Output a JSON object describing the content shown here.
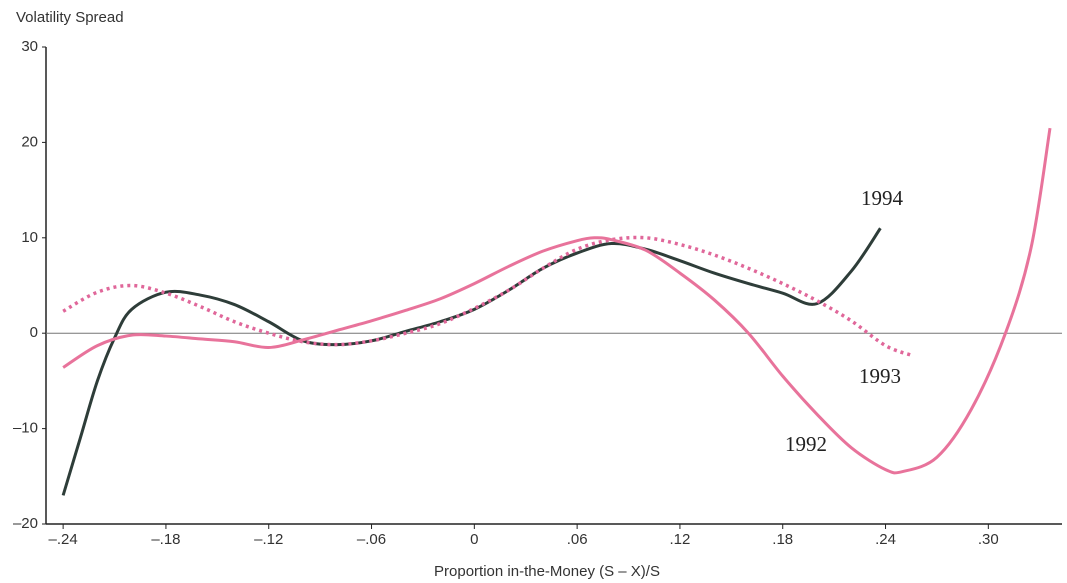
{
  "chart_data": {
    "type": "line",
    "y_label": "Volatility Spread",
    "x_label": "Proportion in-the-Money (S – X)/S",
    "xlim": [
      -0.25,
      0.343
    ],
    "ylim": [
      -20,
      30
    ],
    "xticks": [
      {
        "value": -0.24,
        "label": "–.24"
      },
      {
        "value": -0.18,
        "label": "–.18"
      },
      {
        "value": -0.12,
        "label": "–.12"
      },
      {
        "value": -0.06,
        "label": "–.06"
      },
      0,
      {
        "value": 0.06,
        "label": ".06"
      },
      {
        "value": 0.12,
        "label": ".12"
      },
      {
        "value": 0.18,
        "label": ".18"
      },
      {
        "value": 0.24,
        "label": ".24"
      },
      {
        "value": 0.3,
        "label": ".30"
      }
    ],
    "yticks": [
      {
        "value": -20,
        "label": "–20"
      },
      {
        "value": -10,
        "label": "–10"
      },
      0,
      10,
      20,
      30
    ],
    "zero_line": true,
    "series": [
      {
        "name": "1994",
        "color": "#2e3d39",
        "dashed": false,
        "x": [
          -0.24,
          -0.23,
          -0.22,
          -0.21,
          -0.2,
          -0.18,
          -0.16,
          -0.14,
          -0.12,
          -0.1,
          -0.08,
          -0.06,
          -0.04,
          -0.02,
          0,
          0.02,
          0.04,
          0.06,
          0.08,
          0.1,
          0.12,
          0.14,
          0.16,
          0.18,
          0.2,
          0.22,
          0.237
        ],
        "values": [
          -17,
          -11,
          -5,
          -0.5,
          2.5,
          4.3,
          4,
          3,
          1.2,
          -0.8,
          -1.2,
          -0.8,
          0.2,
          1.2,
          2.5,
          4.5,
          6.8,
          8.4,
          9.4,
          8.8,
          7.6,
          6.3,
          5.2,
          4.2,
          3.1,
          6.5,
          11
        ]
      },
      {
        "name": "1993",
        "color": "#e0679a",
        "dashed": true,
        "x": [
          -0.24,
          -0.22,
          -0.2,
          -0.18,
          -0.16,
          -0.14,
          -0.12,
          -0.1,
          -0.08,
          -0.06,
          -0.04,
          -0.02,
          0,
          0.02,
          0.04,
          0.06,
          0.08,
          0.1,
          0.12,
          0.14,
          0.16,
          0.18,
          0.2,
          0.22,
          0.24,
          0.255
        ],
        "values": [
          2.3,
          4.3,
          5,
          4.2,
          2.8,
          1.2,
          0,
          -0.9,
          -1.2,
          -0.8,
          0,
          1,
          2.6,
          4.5,
          6.8,
          8.8,
          9.8,
          10,
          9.3,
          8.2,
          6.8,
          5.2,
          3.4,
          1.3,
          -1.3,
          -2.3
        ]
      },
      {
        "name": "1992",
        "color": "#e8739b",
        "dashed": false,
        "x": [
          -0.24,
          -0.22,
          -0.2,
          -0.18,
          -0.16,
          -0.14,
          -0.12,
          -0.1,
          -0.08,
          -0.06,
          -0.04,
          -0.02,
          0,
          0.02,
          0.04,
          0.06,
          0.07,
          0.08,
          0.1,
          0.12,
          0.14,
          0.16,
          0.18,
          0.2,
          0.22,
          0.24,
          0.25,
          0.27,
          0.29,
          0.31,
          0.325,
          0.336
        ],
        "values": [
          -3.6,
          -1.3,
          -0.2,
          -0.3,
          -0.6,
          -0.9,
          -1.5,
          -0.7,
          0.3,
          1.3,
          2.4,
          3.6,
          5.2,
          7,
          8.6,
          9.7,
          10,
          9.8,
          8.7,
          6.3,
          3.5,
          0,
          -4.5,
          -8.5,
          -12,
          -14.3,
          -14.5,
          -13,
          -8,
          0,
          9,
          21.5
        ]
      }
    ]
  }
}
